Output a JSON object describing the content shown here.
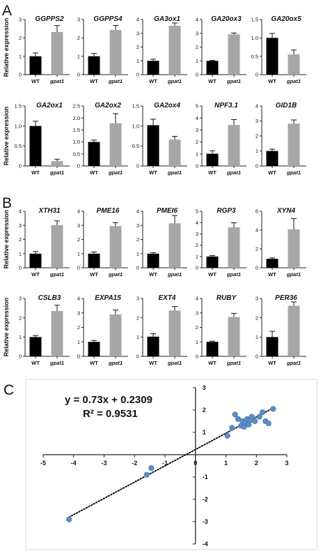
{
  "panels": {
    "a": "A",
    "b": "B",
    "c": "C"
  },
  "chart_data": [
    {
      "type": "bar",
      "panel": "A",
      "ylabel": "Relative expression",
      "categories": [
        "WT",
        "gpat1"
      ],
      "charts": [
        {
          "title": "GGPPS2",
          "ylim": [
            0,
            3
          ],
          "ticks": [
            0,
            1,
            2,
            3
          ],
          "values": [
            1.0,
            2.32
          ],
          "errors": [
            0.18,
            0.35
          ]
        },
        {
          "title": "GGPPS4",
          "ylim": [
            0,
            3
          ],
          "ticks": [
            0,
            1,
            2,
            3
          ],
          "values": [
            1.0,
            2.43
          ],
          "errors": [
            0.15,
            0.25
          ]
        },
        {
          "title": "GA3ox1",
          "ylim": [
            0,
            4
          ],
          "ticks": [
            0,
            1,
            2,
            3,
            4
          ],
          "values": [
            1.0,
            3.55
          ],
          "errors": [
            0.12,
            0.2
          ]
        },
        {
          "title": "GA20ox3",
          "ylim": [
            0,
            4
          ],
          "ticks": [
            0,
            1,
            2,
            3,
            4
          ],
          "values": [
            1.0,
            2.92
          ],
          "errors": [
            0.03,
            0.1
          ]
        },
        {
          "title": "GA20ox5",
          "ylim": [
            0,
            1.5
          ],
          "ticks": [
            0,
            0.5,
            1.0,
            1.5
          ],
          "values": [
            1.0,
            0.55
          ],
          "errors": [
            0.12,
            0.12
          ]
        },
        {
          "title": "GA2ox1",
          "ylim": [
            0,
            1.5
          ],
          "ticks": [
            0,
            0.5,
            1.0,
            1.5
          ],
          "values": [
            1.0,
            0.12
          ],
          "errors": [
            0.12,
            0.05
          ]
        },
        {
          "title": "GA2ox2",
          "ylim": [
            0,
            2.5
          ],
          "ticks": [
            0,
            0.5,
            1.0,
            1.5,
            2.0,
            2.5
          ],
          "values": [
            1.0,
            1.78
          ],
          "errors": [
            0.08,
            0.4
          ]
        },
        {
          "title": "GA2ox4",
          "ylim": [
            0,
            1.5
          ],
          "ticks": [
            0,
            0.5,
            1.0,
            1.5
          ],
          "values": [
            1.02,
            0.66
          ],
          "errors": [
            0.15,
            0.08
          ]
        },
        {
          "title": "NPF3.1",
          "ylim": [
            0,
            5
          ],
          "ticks": [
            0,
            1,
            2,
            3,
            4,
            5
          ],
          "values": [
            1.02,
            3.42
          ],
          "errors": [
            0.25,
            0.45
          ]
        },
        {
          "title": "GID1B",
          "ylim": [
            0,
            4
          ],
          "ticks": [
            0,
            1,
            2,
            3,
            4
          ],
          "values": [
            1.0,
            2.82
          ],
          "errors": [
            0.12,
            0.25
          ]
        }
      ]
    },
    {
      "type": "bar",
      "panel": "B",
      "ylabel": "Relative expression",
      "categories": [
        "WT",
        "gpat1"
      ],
      "charts": [
        {
          "title": "XTH31",
          "ylim": [
            0,
            4
          ],
          "ticks": [
            0,
            1,
            2,
            3,
            4
          ],
          "values": [
            1.0,
            3.02
          ],
          "errors": [
            0.15,
            0.3
          ]
        },
        {
          "title": "PME16",
          "ylim": [
            0,
            4
          ],
          "ticks": [
            0,
            1,
            2,
            3,
            4
          ],
          "values": [
            1.0,
            2.95
          ],
          "errors": [
            0.12,
            0.25
          ]
        },
        {
          "title": "PMEI6",
          "ylim": [
            0,
            4
          ],
          "ticks": [
            0,
            1,
            2,
            3,
            4
          ],
          "values": [
            1.0,
            3.15
          ],
          "errors": [
            0.08,
            0.55
          ]
        },
        {
          "title": "RGP3",
          "ylim": [
            0,
            5
          ],
          "ticks": [
            0,
            1,
            2,
            3,
            4,
            5
          ],
          "values": [
            1.0,
            3.58
          ],
          "errors": [
            0.08,
            0.4
          ]
        },
        {
          "title": "XYN4",
          "ylim": [
            0,
            6
          ],
          "ticks": [
            0,
            2,
            4,
            6
          ],
          "values": [
            0.95,
            4.08
          ],
          "errors": [
            0.1,
            1.15
          ]
        },
        {
          "title": "CSLB3",
          "ylim": [
            0,
            3
          ],
          "ticks": [
            0,
            1,
            2,
            3
          ],
          "values": [
            1.0,
            2.35
          ],
          "errors": [
            0.08,
            0.3
          ]
        },
        {
          "title": "EXPA15",
          "ylim": [
            0,
            4
          ],
          "ticks": [
            0,
            1,
            2,
            3,
            4
          ],
          "values": [
            1.0,
            2.9
          ],
          "errors": [
            0.1,
            0.3
          ]
        },
        {
          "title": "EXT4",
          "ylim": [
            0,
            3
          ],
          "ticks": [
            0,
            1,
            2,
            3
          ],
          "values": [
            1.02,
            2.38
          ],
          "errors": [
            0.15,
            0.2
          ]
        },
        {
          "title": "RUBY",
          "ylim": [
            0,
            4
          ],
          "ticks": [
            0,
            1,
            2,
            3,
            4
          ],
          "values": [
            1.0,
            2.72
          ],
          "errors": [
            0.05,
            0.25
          ]
        },
        {
          "title": "PER36",
          "ylim": [
            0,
            3
          ],
          "ticks": [
            0,
            1,
            2,
            3
          ],
          "values": [
            1.0,
            2.62
          ],
          "errors": [
            0.3,
            0.2
          ]
        }
      ]
    },
    {
      "type": "scatter",
      "panel": "C",
      "equation": "y = 0.73x + 0.2309",
      "r_squared": "R² = 0.9531",
      "xlim": [
        -5,
        3
      ],
      "ylim": [
        -4,
        3
      ],
      "xticks": [
        -5,
        -4,
        -3,
        -2,
        -1,
        0,
        1,
        2,
        3
      ],
      "yticks": [
        -4,
        -3,
        -2,
        -1,
        0,
        1,
        2,
        3
      ],
      "trendline": {
        "slope": 0.73,
        "intercept": 0.2309
      },
      "points": [
        {
          "x": -4.15,
          "y": -2.9
        },
        {
          "x": -1.6,
          "y": -0.9
        },
        {
          "x": -1.45,
          "y": -0.6
        },
        {
          "x": 1.05,
          "y": 0.85
        },
        {
          "x": 1.2,
          "y": 1.2
        },
        {
          "x": 1.3,
          "y": 1.8
        },
        {
          "x": 1.4,
          "y": 1.6
        },
        {
          "x": 1.5,
          "y": 1.3
        },
        {
          "x": 1.55,
          "y": 1.5
        },
        {
          "x": 1.6,
          "y": 1.25
        },
        {
          "x": 1.65,
          "y": 1.45
        },
        {
          "x": 1.7,
          "y": 1.6
        },
        {
          "x": 1.75,
          "y": 1.35
        },
        {
          "x": 1.8,
          "y": 1.55
        },
        {
          "x": 1.85,
          "y": 1.7
        },
        {
          "x": 1.95,
          "y": 1.5
        },
        {
          "x": 2.1,
          "y": 1.7
        },
        {
          "x": 2.2,
          "y": 1.9
        },
        {
          "x": 2.3,
          "y": 1.5
        },
        {
          "x": 2.4,
          "y": 1.4
        },
        {
          "x": 2.55,
          "y": 2.05
        }
      ]
    }
  ],
  "colors": {
    "wt": "#000000",
    "gpat1": "#a6a6a6",
    "point": "#5b8ec8",
    "axis": "#222222"
  }
}
